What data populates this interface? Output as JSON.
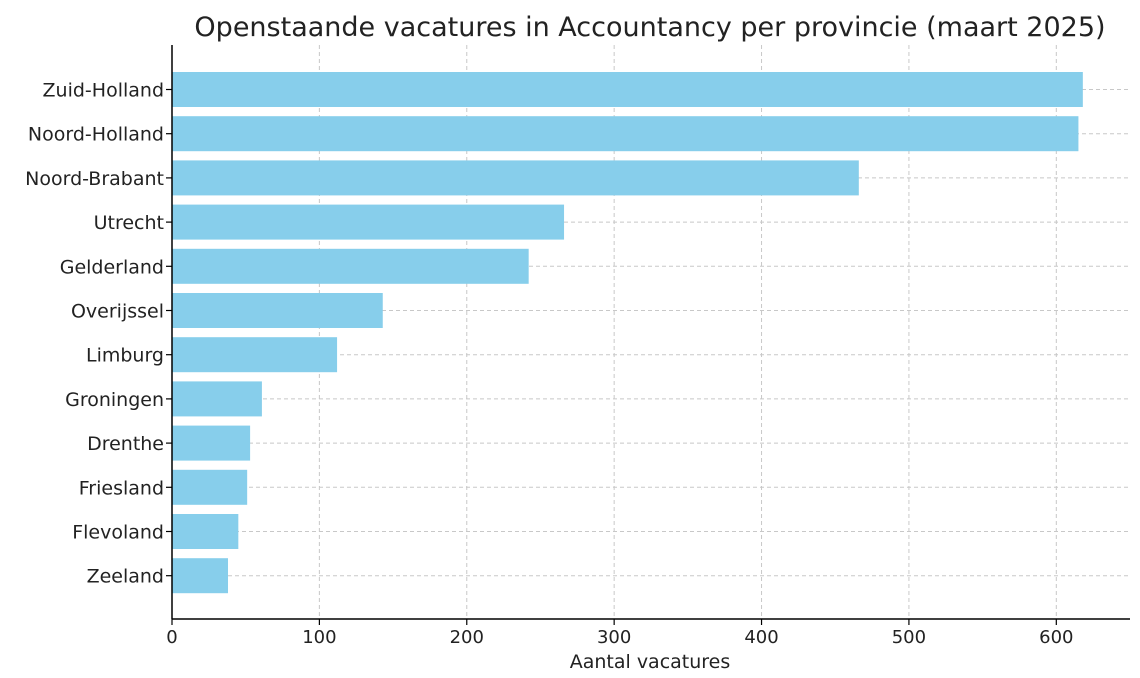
{
  "chart_data": {
    "type": "bar",
    "orientation": "horizontal",
    "title": "Openstaande vacatures in Accountancy per provincie (maart 2025)",
    "xlabel": "Aantal vacatures",
    "ylabel": "",
    "categories": [
      "Zuid-Holland",
      "Noord-Holland",
      "Noord-Brabant",
      "Utrecht",
      "Gelderland",
      "Overijssel",
      "Limburg",
      "Groningen",
      "Drenthe",
      "Friesland",
      "Flevoland",
      "Zeeland"
    ],
    "values": [
      618,
      615,
      466,
      266,
      242,
      143,
      112,
      61,
      53,
      51,
      45,
      38
    ],
    "xlim": [
      0,
      650
    ],
    "xticks": [
      0,
      100,
      200,
      300,
      400,
      500,
      600
    ],
    "grid": true,
    "bar_color": "#87ceeb"
  }
}
